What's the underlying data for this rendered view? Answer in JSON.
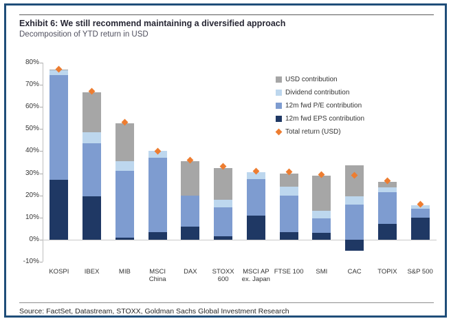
{
  "header": {
    "title": "Exhibit 6: We still recommend maintaining a diversified approach",
    "subtitle": "Decomposition of YTD return in USD"
  },
  "footer": {
    "source": "Source: FactSet, Datastream, STOXX, Goldman Sachs Global Investment Research"
  },
  "colors": {
    "frame_border": "#1f4e79",
    "eps": "#1f3864",
    "pe": "#7e9cd0",
    "dividend": "#bdd7ee",
    "usd": "#a6a6a6",
    "total_marker": "#ed7d31"
  },
  "chart_data": {
    "type": "bar",
    "stacked": true,
    "title": "Decomposition of YTD return in USD",
    "xlabel": "",
    "ylabel": "",
    "grid": false,
    "legend_position": "top-right-inside",
    "categories": [
      "KOSPI",
      "IBEX",
      "MIB",
      "MSCI\nChina",
      "DAX",
      "STOXX\n600",
      "MSCI AP\nex. Japan",
      "FTSE 100",
      "SMI",
      "CAC",
      "TOPIX",
      "S&P 500"
    ],
    "series": [
      {
        "name": "12m fwd EPS contribution",
        "color": "#1f3864",
        "values": [
          27,
          19.5,
          1,
          3.5,
          6,
          1.5,
          11,
          3.5,
          3,
          -5,
          7,
          10
        ]
      },
      {
        "name": "12m fwd P/E contribution",
        "color": "#7e9cd0",
        "values": [
          47.5,
          24,
          30,
          33.5,
          14,
          13,
          16.5,
          16.5,
          6.5,
          16,
          14.5,
          4
        ]
      },
      {
        "name": "Dividend contribution",
        "color": "#bdd7ee",
        "values": [
          2,
          5,
          4.5,
          3,
          0,
          3.5,
          3,
          4,
          3.5,
          3.5,
          2,
          1.5
        ]
      },
      {
        "name": "USD contribution",
        "color": "#a6a6a6",
        "values": [
          0.5,
          18,
          17,
          0,
          15.5,
          14.5,
          0,
          6,
          16,
          14,
          2.5,
          0
        ]
      }
    ],
    "total_series": {
      "name": "Total return (USD)",
      "color": "#ed7d31",
      "marker": "diamond",
      "values": [
        77,
        67,
        53,
        40,
        36,
        33,
        31,
        30.5,
        29.5,
        29,
        26.5,
        16
      ]
    },
    "y_axis": {
      "min": -10,
      "max": 80,
      "step": 10,
      "ticks": [
        "80%",
        "70%",
        "60%",
        "50%",
        "40%",
        "30%",
        "20%",
        "10%",
        "0%",
        "-10%"
      ]
    },
    "legend": [
      {
        "label": "USD contribution",
        "color": "#a6a6a6",
        "shape": "square"
      },
      {
        "label": "Dividend contribution",
        "color": "#bdd7ee",
        "shape": "square"
      },
      {
        "label": "12m fwd P/E contribution",
        "color": "#7e9cd0",
        "shape": "square"
      },
      {
        "label": "12m fwd EPS contribution",
        "color": "#1f3864",
        "shape": "square"
      },
      {
        "label": "Total return (USD)",
        "color": "#ed7d31",
        "shape": "diamond"
      }
    ]
  }
}
